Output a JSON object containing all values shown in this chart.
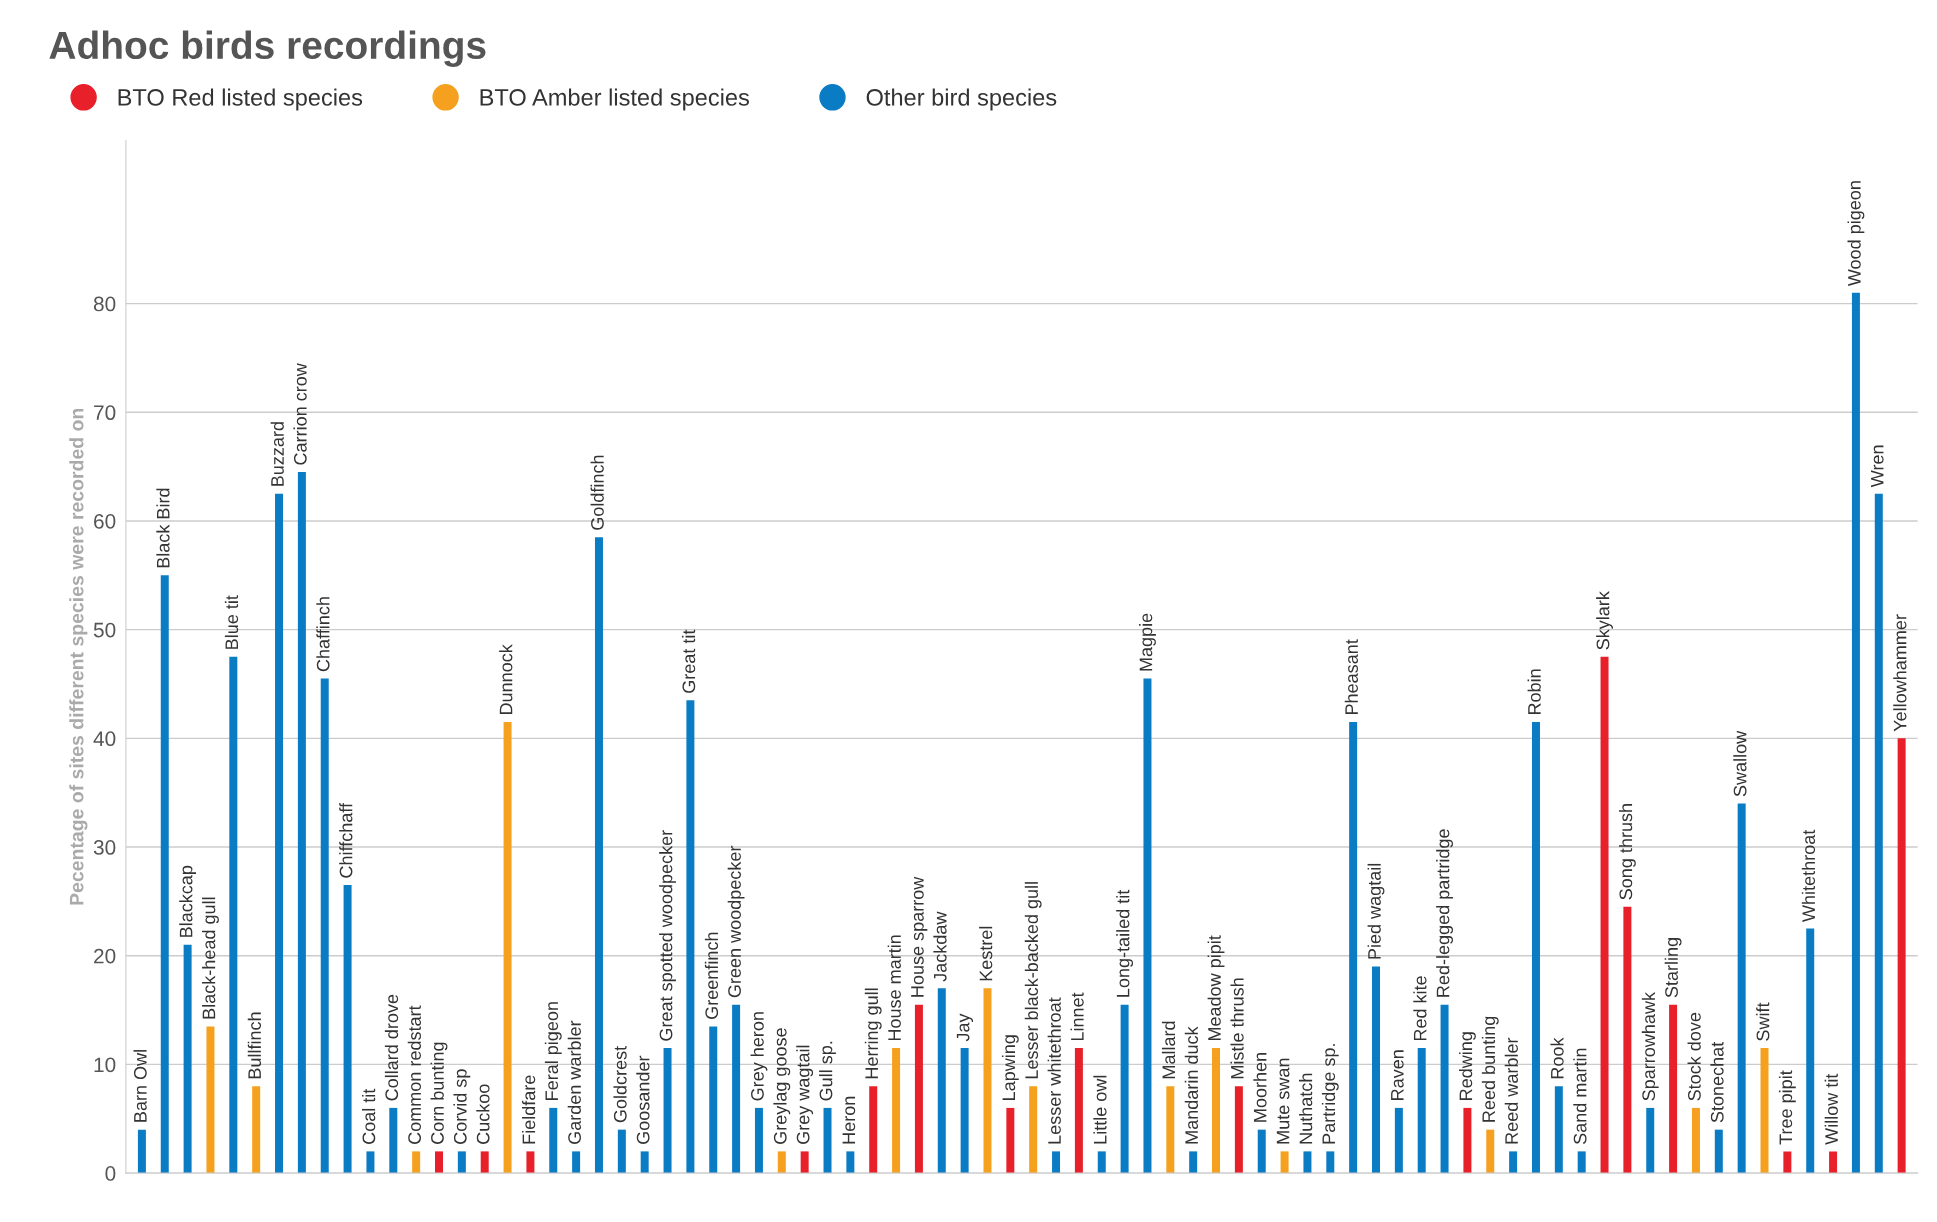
{
  "chart_data": {
    "type": "bar",
    "title": "Adhoc birds recordings",
    "ylabel": "Pecentage of sites different species were recorded on",
    "categories": [
      "Barn Owl",
      "Black Bird",
      "Blackcap",
      "Black-head gull",
      "Blue tit",
      "Bullfinch",
      "Buzzard",
      "Carrion crow",
      "Chaffinch",
      "Chiffchaff",
      "Coal tit",
      "Collard drove",
      "Common redstart",
      "Corn bunting",
      "Corvid sp",
      "Cuckoo",
      "Dunnock",
      "Fieldfare",
      "Feral pigeon",
      "Garden warbler",
      "Goldfinch",
      "Goldcrest",
      "Goosander",
      "Great spotted woodpecker",
      "Great tit",
      "Greenfinch",
      "Green woodpecker",
      "Grey heron",
      "Greylag goose",
      "Grey wagtail",
      "Gull sp.",
      "Heron",
      "Herring gull",
      "House martin",
      "House sparrow",
      "Jackdaw",
      "Jay",
      "Kestrel",
      "Lapwing",
      "Lesser black-backed gull",
      "Lesser whitethroat",
      "Linnet",
      "Little owl",
      "Long-tailed tit",
      "Magpie",
      "Mallard",
      "Mandarin duck",
      "Meadow pipit",
      "Mistle thrush",
      "Moorhen",
      "Mute swan",
      "Nuthatch",
      "Partridge sp.",
      "Pheasant",
      "Pied wagtail",
      "Raven",
      "Red kite",
      "Red-legged partridge",
      "Redwing",
      "Reed bunting",
      "Reed warbler",
      "Robin",
      "Rook",
      "Sand martin",
      "Skylark",
      "Song thrush",
      "Sparrowhawk",
      "Starling",
      "Stock dove",
      "Stonechat",
      "Swallow",
      "Swift",
      "Tree pipit",
      "Whitethroat",
      "Willow tit",
      "Wood pigeon",
      "Wren",
      "Yellowhammer"
    ],
    "series": [
      {
        "name": "BTO Red listed species",
        "color": "#e8202a",
        "values": [
          null,
          null,
          null,
          null,
          null,
          null,
          null,
          null,
          null,
          null,
          null,
          null,
          null,
          2,
          null,
          2,
          null,
          2,
          null,
          null,
          null,
          null,
          null,
          null,
          null,
          null,
          null,
          null,
          null,
          2,
          null,
          null,
          8,
          null,
          15.5,
          null,
          null,
          null,
          6,
          null,
          null,
          11.5,
          null,
          null,
          null,
          null,
          null,
          null,
          8,
          null,
          null,
          null,
          null,
          null,
          null,
          null,
          null,
          null,
          6,
          null,
          null,
          null,
          null,
          null,
          47.5,
          24.5,
          null,
          15.5,
          null,
          null,
          null,
          null,
          2,
          null,
          2,
          null,
          null,
          40
        ]
      },
      {
        "name": "BTO Amber listed species",
        "color": "#f5a01f",
        "values": [
          null,
          null,
          null,
          13.5,
          null,
          8,
          null,
          null,
          null,
          null,
          null,
          null,
          2,
          null,
          null,
          null,
          41.5,
          null,
          null,
          null,
          null,
          null,
          null,
          null,
          null,
          null,
          null,
          null,
          2,
          null,
          null,
          null,
          null,
          11.5,
          null,
          null,
          null,
          17,
          null,
          8,
          null,
          null,
          null,
          null,
          null,
          8,
          null,
          11.5,
          null,
          null,
          2,
          null,
          null,
          null,
          null,
          null,
          null,
          null,
          null,
          4,
          null,
          null,
          null,
          null,
          null,
          null,
          null,
          null,
          6,
          null,
          null,
          11.5,
          null,
          null,
          null,
          null,
          null,
          null
        ]
      },
      {
        "name": "Other bird species",
        "color": "#0a7cc4",
        "values": [
          4,
          55,
          21,
          null,
          47.5,
          null,
          62.5,
          64.5,
          45.5,
          26.5,
          2,
          6,
          null,
          null,
          2,
          null,
          null,
          null,
          6,
          2,
          58.5,
          4,
          2,
          11.5,
          43.5,
          13.5,
          15.5,
          6,
          null,
          null,
          6,
          2,
          null,
          null,
          null,
          17,
          11.5,
          null,
          null,
          null,
          2,
          null,
          2,
          15.5,
          45.5,
          null,
          2,
          null,
          null,
          4,
          null,
          2,
          2,
          41.5,
          19,
          6,
          11.5,
          15.5,
          null,
          null,
          2,
          41.5,
          8,
          2,
          null,
          null,
          6,
          null,
          null,
          4,
          34,
          null,
          null,
          22.5,
          null,
          81,
          62.5,
          null
        ]
      }
    ],
    "ylim": [
      0,
      95
    ],
    "yticks": [
      0,
      10,
      20,
      30,
      40,
      50,
      60,
      70,
      80
    ],
    "grid": "y",
    "legend": "top left",
    "tick_labels": "y"
  }
}
